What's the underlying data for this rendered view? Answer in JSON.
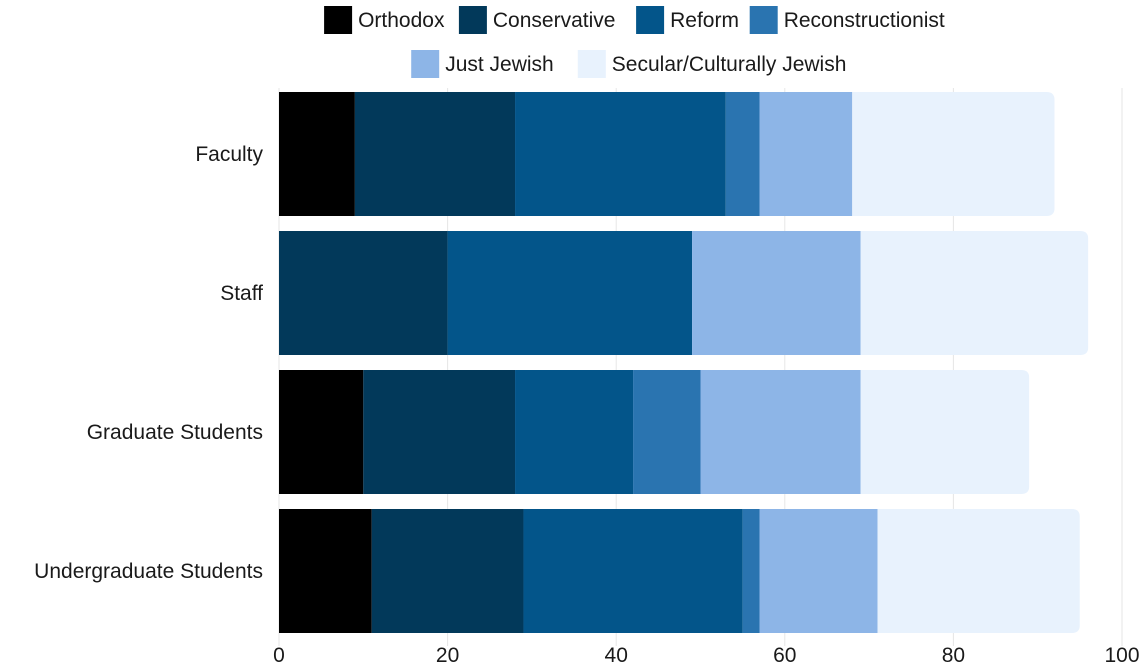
{
  "chart_data": {
    "type": "bar",
    "orientation": "horizontal",
    "stacked": true,
    "categories": [
      "Faculty",
      "Staff",
      "Graduate Students",
      "Undergraduate Students"
    ],
    "series": [
      {
        "name": "Orthodox",
        "color": "#000000",
        "values": [
          9,
          0,
          10,
          11
        ]
      },
      {
        "name": "Conservative",
        "color": "#02395A",
        "values": [
          19,
          20,
          18,
          18
        ]
      },
      {
        "name": "Reform",
        "color": "#03558A",
        "values": [
          25,
          29,
          14,
          26
        ]
      },
      {
        "name": "Reconstructionist",
        "color": "#2A74B0",
        "values": [
          4,
          0,
          8,
          2
        ]
      },
      {
        "name": "Just Jewish",
        "color": "#8DB5E7",
        "values": [
          11,
          20,
          19,
          14
        ]
      },
      {
        "name": "Secular/Culturally Jewish",
        "color": "#E8F2FD",
        "values": [
          24,
          27,
          20,
          24
        ]
      }
    ],
    "xlim": [
      0,
      100
    ],
    "xticks": [
      0,
      20,
      40,
      60,
      80,
      100
    ],
    "xlabel": "",
    "ylabel": "",
    "title": "",
    "grid": "vertical",
    "legend_position": "top"
  }
}
